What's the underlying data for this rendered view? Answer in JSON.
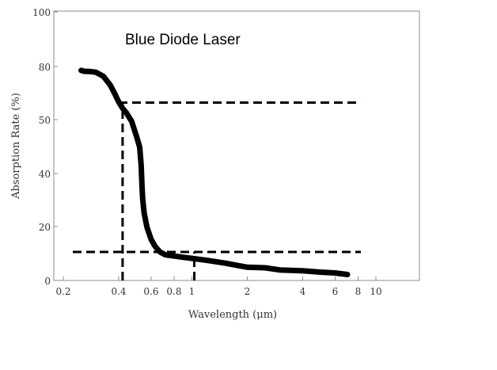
{
  "chart_data": {
    "type": "line",
    "title": "Blue Diode Laser",
    "xlabel": "Wavelength (μm)",
    "ylabel": "Absorption Rate (%)",
    "x_scale": "log",
    "xlim": [
      0.2,
      12
    ],
    "ylim": [
      0,
      100
    ],
    "x_ticks": [
      0.2,
      0.4,
      0.6,
      0.8,
      1,
      2,
      4,
      6,
      8,
      10
    ],
    "x_tick_labels": [
      "0.2",
      "0.4",
      "0.6",
      "0.8",
      "1",
      "2",
      "4",
      "6",
      "8",
      "10"
    ],
    "y_ticks": [
      0,
      20,
      40,
      50,
      80,
      100
    ],
    "y_tick_labels": [
      "0",
      "20",
      "40",
      "50",
      "80",
      "100"
    ],
    "grid": false,
    "series": [
      {
        "x": [
          0.25,
          0.26,
          0.28,
          0.3,
          0.33,
          0.36,
          0.38,
          0.4,
          0.42,
          0.44,
          0.47,
          0.5,
          0.52,
          0.53,
          0.535,
          0.54,
          0.55,
          0.57,
          0.6,
          0.63,
          0.67,
          0.72,
          0.8,
          0.9,
          1.0,
          1.2,
          1.5,
          2.0,
          2.5,
          3.0,
          4.0,
          5.0,
          6.0,
          7.0
        ],
        "y": [
          77.8,
          77.3,
          77.2,
          76.8,
          74.5,
          69.5,
          64.8,
          60.0,
          56.4,
          53.9,
          49.7,
          46.9,
          44.9,
          41.5,
          35.5,
          30.4,
          25.2,
          19.8,
          15.3,
          12.7,
          10.6,
          9.5,
          9.1,
          8.6,
          8.2,
          7.5,
          6.5,
          4.9,
          4.7,
          3.9,
          3.6,
          3.1,
          2.8,
          2.2
        ]
      }
    ],
    "reference_lines": [
      {
        "orientation": "horizontal",
        "y": 59.6,
        "x_from": 0.4,
        "x_to": 10
      },
      {
        "orientation": "horizontal",
        "y": 10.6,
        "x_from": 0.2,
        "x_to": 10
      },
      {
        "orientation": "vertical",
        "x": 0.42,
        "y_from": 0,
        "y_to": 59.6
      },
      {
        "orientation": "vertical",
        "x": 1.03,
        "y_from": 0,
        "y_to": 10.6
      }
    ],
    "colors": {
      "line": "#000000",
      "axis": "#8c8c8c"
    }
  }
}
